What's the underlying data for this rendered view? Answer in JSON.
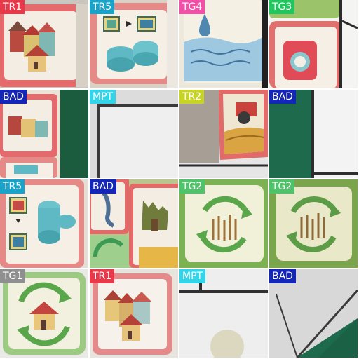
{
  "colors": {
    "TR1": "#e8394a",
    "TR5": "#1aa3c9",
    "TG4": "#f050a6",
    "TG3": "#22c55e",
    "BAD": "#1326b8",
    "MPT": "#33d4e8",
    "TR2": "#c7d425",
    "TG2": "#4fc26a",
    "TG1": "#8f8f8f"
  },
  "tiles": [
    {
      "label": "TR1",
      "scene": "houses-card"
    },
    {
      "label": "TR5",
      "scene": "pipes-card"
    },
    {
      "label": "TG4",
      "scene": "water-card"
    },
    {
      "label": "TG3",
      "scene": "camera-card"
    },
    {
      "label": "BAD",
      "scene": "edge-card-on-green"
    },
    {
      "label": "MPT",
      "scene": "empty-board"
    },
    {
      "label": "TR2",
      "scene": "tractor-card"
    },
    {
      "label": "BAD",
      "scene": "green-mat"
    },
    {
      "label": "TR5",
      "scene": "pipes-card"
    },
    {
      "label": "BAD",
      "scene": "overlap-cards"
    },
    {
      "label": "TG2",
      "scene": "recycle-reeds-card"
    },
    {
      "label": "TG2",
      "scene": "recycle-reeds-card"
    },
    {
      "label": "TG1",
      "scene": "recycle-house-card"
    },
    {
      "label": "TR1",
      "scene": "houses-card"
    },
    {
      "label": "MPT",
      "scene": "empty-board-spot"
    },
    {
      "label": "BAD",
      "scene": "board-corner"
    }
  ]
}
